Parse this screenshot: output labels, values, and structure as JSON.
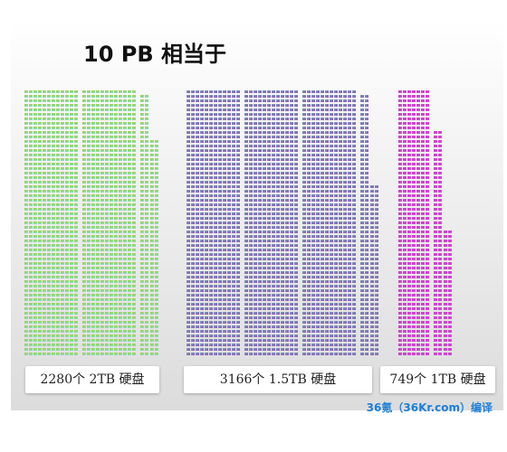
{
  "chart_data": {
    "type": "pictograph",
    "title": "10 PB 相当于",
    "total": "10 PB",
    "series": [
      {
        "label": "2280个 2TB 硬盘",
        "count": 2280,
        "disk_size": "2TB",
        "color_top": "#a8cc32",
        "color_bottom": "#7fe2dc"
      },
      {
        "label": "3166个 1.5TB 硬盘",
        "count": 3166,
        "disk_size": "1.5TB",
        "color_top": "#6fa8b8",
        "color_bottom": "#9a4fb8"
      },
      {
        "label": "749个 1TB 硬盘",
        "count": 749,
        "disk_size": "1TB",
        "color_top": "#c93fc8",
        "color_bottom": "#d24fd6"
      }
    ]
  },
  "credit": "36氪（36Kr.com）编译"
}
